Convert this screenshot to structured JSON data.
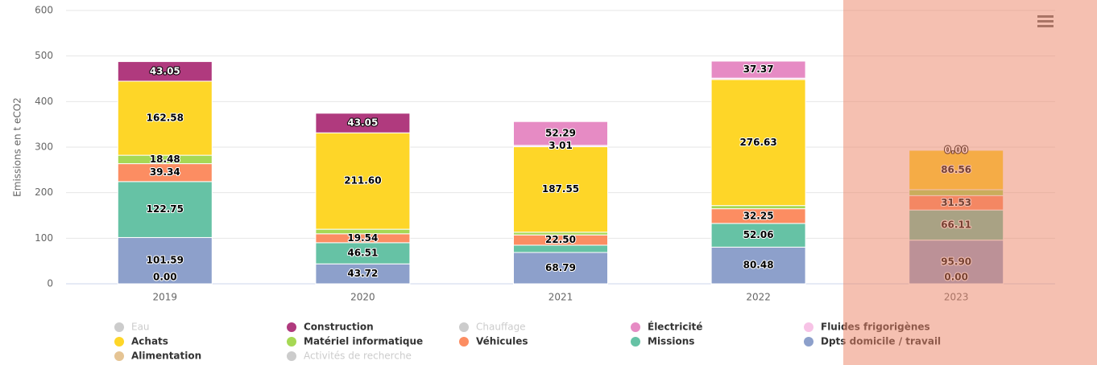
{
  "chart_data": {
    "type": "stacked_bar",
    "y_axis_label": "Emissions en t eCO2",
    "categories": [
      "2019",
      "2020",
      "2021",
      "2022",
      "2023"
    ],
    "ylim": [
      0,
      600
    ],
    "yticks": [
      0,
      100,
      200,
      300,
      400,
      500,
      600
    ],
    "grid": true,
    "series": [
      {
        "name": "Eau",
        "color": "#cccccc",
        "visible": false,
        "values": [
          null,
          null,
          null,
          null,
          null
        ]
      },
      {
        "name": "Construction",
        "color": "#b03a7e",
        "visible": true,
        "values": [
          43.05,
          43.05,
          null,
          null,
          0
        ],
        "value_labels": [
          "43.05",
          "43.05",
          null,
          null,
          "0.00"
        ]
      },
      {
        "name": "Chauffage",
        "color": "#cccccc",
        "visible": false,
        "values": [
          null,
          null,
          null,
          null,
          null
        ]
      },
      {
        "name": "Électricité",
        "color": "#e68bc4",
        "visible": true,
        "values": [
          null,
          null,
          52.29,
          37.37,
          null
        ],
        "value_labels": [
          null,
          null,
          "52.29",
          "37.37",
          null
        ]
      },
      {
        "name": "Fluides frigorigènes",
        "color": "#f7c3e6",
        "visible": true,
        "values": [
          null,
          null,
          3.01,
          3,
          null
        ],
        "value_labels": [
          null,
          null,
          "3.01",
          null,
          null
        ]
      },
      {
        "name": "Achats",
        "color": "#fed628",
        "visible": true,
        "values": [
          162.58,
          211.6,
          187.55,
          276.63,
          86.56
        ],
        "value_labels": [
          "162.58",
          "211.60",
          "187.55",
          "276.63",
          "86.56"
        ]
      },
      {
        "name": "Matériel informatique",
        "color": "#a6d854",
        "visible": true,
        "values": [
          18.48,
          10,
          6,
          7,
          13
        ],
        "value_labels": [
          "18.48",
          null,
          null,
          null,
          null
        ]
      },
      {
        "name": "Véhicules",
        "color": "#fc8d62",
        "visible": true,
        "values": [
          39.34,
          19.54,
          22.5,
          32.25,
          31.53
        ],
        "value_labels": [
          "39.34",
          "19.54",
          "22.50",
          "32.25",
          "31.53"
        ]
      },
      {
        "name": "Missions",
        "color": "#66c2a5",
        "visible": true,
        "values": [
          122.75,
          46.51,
          16,
          52.06,
          66.11
        ],
        "value_labels": [
          "122.75",
          "46.51",
          null,
          "52.06",
          "66.11"
        ]
      },
      {
        "name": "Dpts domicile / travail",
        "color": "#8da0cb",
        "visible": true,
        "values": [
          101.59,
          43.72,
          68.79,
          80.48,
          95.9
        ],
        "value_labels": [
          "101.59",
          "43.72",
          "68.79",
          "80.48",
          "95.90"
        ]
      },
      {
        "name": "Alimentation",
        "color": "#e5c494",
        "visible": true,
        "values": [
          0,
          null,
          null,
          null,
          0
        ],
        "value_labels": [
          "0.00",
          null,
          null,
          null,
          "0.00"
        ]
      },
      {
        "name": "Activités de recherche",
        "color": "#cccccc",
        "visible": false,
        "values": [
          null,
          null,
          null,
          null,
          null
        ]
      }
    ]
  }
}
